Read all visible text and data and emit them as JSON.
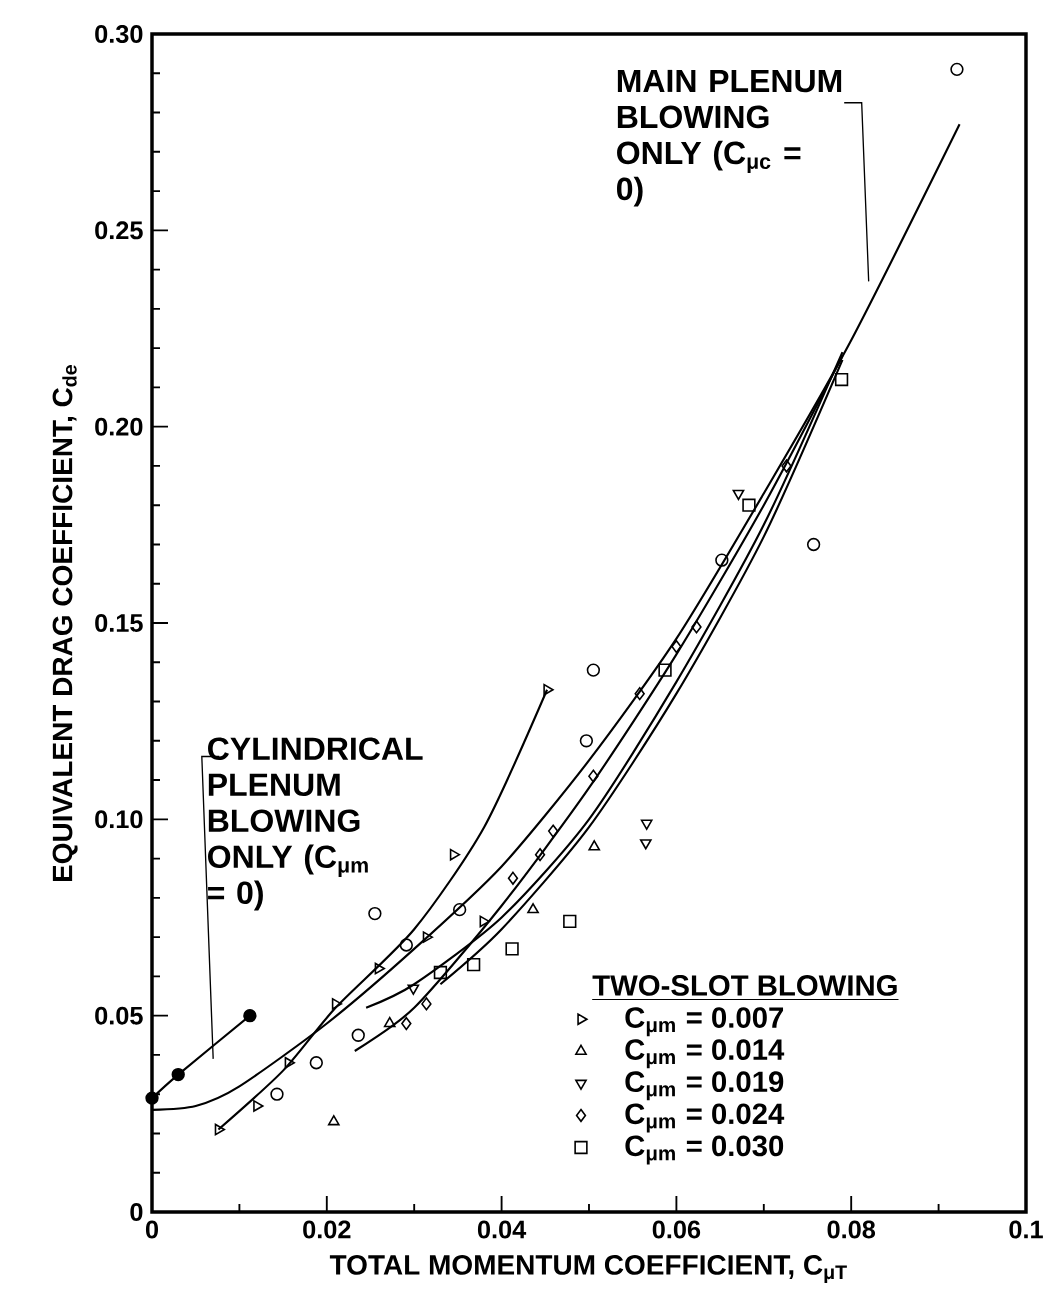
{
  "chart_data": {
    "type": "scatter",
    "xlabel": "TOTAL MOMENTUM COEFFICIENT, C$_{μT}$",
    "ylabel": "EQUIVALENT DRAG COEFFICIENT, C$_{de}$",
    "legend_title": "TWO-SLOT BLOWING",
    "legend": "bottom right",
    "xlim": [
      0,
      0.1
    ],
    "ylim": [
      0,
      0.3
    ],
    "xticks": [
      0,
      {
        "value": 0.01,
        "label": null
      },
      0.02,
      {
        "value": 0.03,
        "label": null
      },
      0.04,
      {
        "value": 0.05,
        "label": null
      },
      0.06,
      {
        "value": 0.07,
        "label": null
      },
      0.08,
      {
        "value": 0.09,
        "label": null
      },
      0.1
    ],
    "yticks": [
      0,
      {
        "value": 0.01,
        "label": null
      },
      {
        "value": 0.02,
        "label": null
      },
      {
        "value": 0.03,
        "label": null
      },
      {
        "value": 0.04,
        "label": null
      },
      0.05,
      {
        "value": 0.06,
        "label": null
      },
      {
        "value": 0.07,
        "label": null
      },
      {
        "value": 0.08,
        "label": null
      },
      {
        "value": 0.09,
        "label": null
      },
      {
        "value": 0.1,
        "label": "0.10"
      },
      {
        "value": 0.11,
        "label": null
      },
      {
        "value": 0.12,
        "label": null
      },
      {
        "value": 0.13,
        "label": null
      },
      {
        "value": 0.14,
        "label": null
      },
      0.15,
      {
        "value": 0.16,
        "label": null
      },
      {
        "value": 0.17,
        "label": null
      },
      {
        "value": 0.18,
        "label": null
      },
      {
        "value": 0.19,
        "label": null
      },
      {
        "value": 0.2,
        "label": "0.20"
      },
      {
        "value": 0.21,
        "label": null
      },
      {
        "value": 0.22,
        "label": null
      },
      {
        "value": 0.23,
        "label": null
      },
      {
        "value": 0.24,
        "label": null
      },
      0.25,
      {
        "value": 0.26,
        "label": null
      },
      {
        "value": 0.27,
        "label": null
      },
      {
        "value": 0.28,
        "label": null
      },
      {
        "value": 0.29,
        "label": null
      },
      {
        "value": 0.3,
        "label": "0.30"
      }
    ],
    "series": [
      {
        "type": "scatter",
        "marker": "circle",
        "color": "#000000",
        "x": [
          0.0143,
          0.0188,
          0.0236,
          0.0255,
          0.0291,
          0.0352,
          0.0497,
          0.0505,
          0.0652,
          0.0757,
          0.0921
        ],
        "values": [
          0.03,
          0.038,
          0.045,
          0.076,
          0.068,
          0.077,
          0.12,
          0.138,
          0.166,
          0.17,
          0.291
        ]
      },
      {
        "type": "line",
        "marker": "circle",
        "color": "#000000",
        "x": [
          0,
          0.003,
          0.0112
        ],
        "values": [
          0.029,
          0.035,
          0.05
        ]
      },
      {
        "type": "scatter",
        "name": "C$_{μm}$ = 0.007",
        "marker": "triangle-right",
        "color": "#000000",
        "x": [
          0.0076,
          0.012,
          0.0156,
          0.021,
          0.0259,
          0.0314,
          0.0345,
          0.0379,
          0.0452
        ],
        "values": [
          0.021,
          0.027,
          0.038,
          0.053,
          0.062,
          0.07,
          0.091,
          0.074,
          0.133
        ]
      },
      {
        "type": "scatter",
        "name": "C$_{μm}$ = 0.014",
        "marker": "triangle",
        "color": "#000000",
        "x": [
          0.0208,
          0.0272,
          0.0436,
          0.0506
        ],
        "values": [
          0.023,
          0.048,
          0.077,
          0.093
        ]
      },
      {
        "type": "scatter",
        "name": "C$_{μm}$ = 0.019",
        "marker": "triangle-down",
        "color": "#000000",
        "x": [
          0.0299,
          0.0565,
          0.0566,
          0.0671
        ],
        "values": [
          0.057,
          0.094,
          0.099,
          0.183
        ]
      },
      {
        "type": "scatter",
        "name": "C$_{μm}$ = 0.024",
        "marker": "diamond",
        "color": "#000000",
        "x": [
          0.0291,
          0.0314,
          0.0413,
          0.0444,
          0.0459,
          0.0505,
          0.0558,
          0.06,
          0.0623,
          0.0726
        ],
        "values": [
          0.048,
          0.053,
          0.085,
          0.091,
          0.097,
          0.111,
          0.132,
          0.144,
          0.149,
          0.19
        ]
      },
      {
        "type": "scatter",
        "name": "C$_{μm}$ = 0.030",
        "marker": "square",
        "color": "#000000",
        "x": [
          0.033,
          0.0368,
          0.0412,
          0.0478,
          0.0587,
          0.0683,
          0.0789
        ],
        "values": [
          0.061,
          0.063,
          0.067,
          0.074,
          0.138,
          0.18,
          0.212
        ]
      },
      {
        "type": "line",
        "marker": "none",
        "color": "#000000",
        "x": [
          0,
          0.005,
          0.01,
          0.02,
          0.03,
          0.04,
          0.05,
          0.06,
          0.07,
          0.08,
          0.0924
        ],
        "values": [
          0.026,
          0.027,
          0.032,
          0.048,
          0.067,
          0.088,
          0.115,
          0.146,
          0.183,
          0.222,
          0.277
        ]
      },
      {
        "type": "line",
        "marker": "none",
        "color": "#000000",
        "x": [
          0.0076,
          0.015,
          0.021,
          0.03,
          0.038,
          0.0452
        ],
        "values": [
          0.021,
          0.036,
          0.052,
          0.072,
          0.098,
          0.133
        ]
      },
      {
        "type": "line",
        "marker": "none",
        "color": "#000000",
        "x": [
          0.0232,
          0.03,
          0.04,
          0.05,
          0.06,
          0.07,
          0.079
        ],
        "values": [
          0.041,
          0.052,
          0.078,
          0.108,
          0.142,
          0.18,
          0.218
        ]
      },
      {
        "type": "line",
        "marker": "none",
        "color": "#000000",
        "x": [
          0.033,
          0.04,
          0.05,
          0.06,
          0.07,
          0.079
        ],
        "values": [
          0.058,
          0.072,
          0.098,
          0.132,
          0.172,
          0.217
        ]
      },
      {
        "type": "line",
        "marker": "none",
        "color": "#000000",
        "x": [
          0.0245,
          0.03,
          0.04,
          0.05,
          0.06,
          0.07,
          0.079
        ],
        "values": [
          0.052,
          0.058,
          0.075,
          0.1,
          0.135,
          0.175,
          0.219
        ]
      }
    ],
    "annotations": [
      "MAIN PLENUM BLOWING ONLY (C$_{μc}$ = 0)",
      "CYLINDRICAL PLENUM BLOWING ONLY (C$_{μm}$ = 0)"
    ]
  }
}
